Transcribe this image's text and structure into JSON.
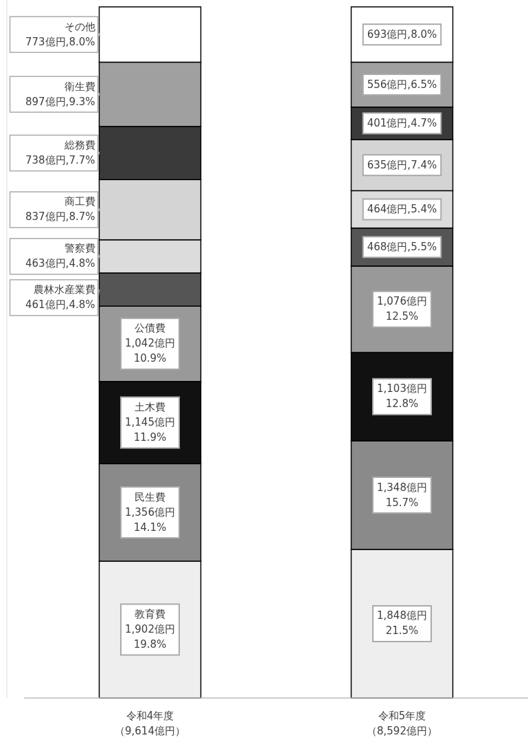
{
  "chart_data": {
    "type": "bar",
    "stacked": true,
    "ylim": [
      0,
      100
    ],
    "categories": [
      "令和4年度（9,614億円）",
      "令和5年度（8,592億円）"
    ],
    "series": [
      {
        "name": "教育費",
        "color": "#eeeeee",
        "values": [
          19.8,
          21.5
        ],
        "value_labels": [
          "1,902億円\n19.8%",
          "1,848億円\n21.5%"
        ]
      },
      {
        "name": "民生費",
        "color": "#8a8a8a",
        "values": [
          14.1,
          15.7
        ],
        "value_labels": [
          "1,356億円\n14.1%",
          "1,348億円\n15.7%"
        ]
      },
      {
        "name": "土木費",
        "color": "#111111",
        "values": [
          11.9,
          12.8
        ],
        "value_labels": [
          "1,145億円\n11.9%",
          "1,103億円\n12.8%"
        ]
      },
      {
        "name": "公債費",
        "color": "#999999",
        "values": [
          10.9,
          12.5
        ],
        "value_labels": [
          "1,042億円\n10.9%",
          "1,076億円\n12.5%"
        ]
      },
      {
        "name": "農林水産業費",
        "color": "#555555",
        "values": [
          4.8,
          5.5
        ],
        "value_labels": [
          "461億円,4.8%",
          "468億円,5.5%"
        ]
      },
      {
        "name": "警察費",
        "color": "#dcdcdc",
        "values": [
          4.8,
          5.4
        ],
        "value_labels": [
          "463億円,4.8%",
          "464億円,5.4%"
        ]
      },
      {
        "name": "商工費",
        "color": "#d4d4d4",
        "values": [
          8.7,
          7.4
        ],
        "value_labels": [
          "837億円,8.7%",
          "635億円,7.4%"
        ]
      },
      {
        "name": "総務費",
        "color": "#3a3a3a",
        "values": [
          7.7,
          4.7
        ],
        "value_labels": [
          "738億円,7.7%",
          "401億円,4.7%"
        ]
      },
      {
        "name": "衛生費",
        "color": "#a0a0a0",
        "values": [
          9.3,
          6.5
        ],
        "value_labels": [
          "897億円,9.3%",
          "556億円,6.5%"
        ]
      },
      {
        "name": "その他",
        "color": "#ffffff",
        "values": [
          8.0,
          8.0
        ],
        "value_labels": [
          "773億円,8.0%",
          "693億円,8.0%"
        ]
      }
    ]
  }
}
